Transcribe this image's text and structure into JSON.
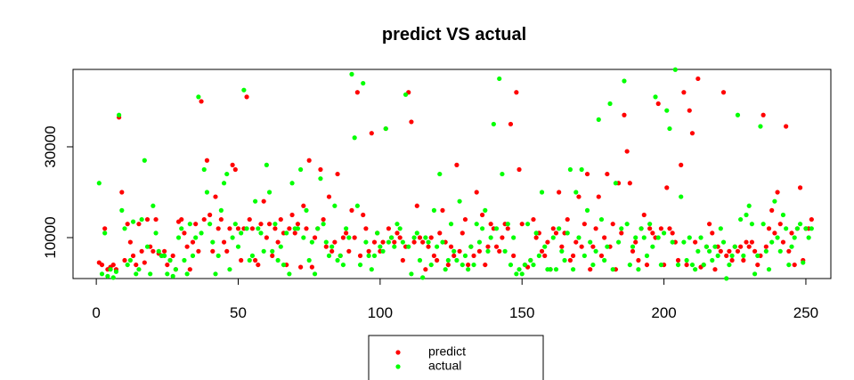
{
  "chart_data": {
    "type": "scatter",
    "title": "predict VS actual",
    "x": [
      1,
      2,
      3,
      4,
      5,
      6,
      7,
      8,
      9,
      10,
      11,
      12,
      13,
      14,
      15,
      16,
      17,
      18,
      19,
      20,
      21,
      22,
      23,
      24,
      25,
      26,
      27,
      28,
      29,
      30,
      31,
      32,
      33,
      34,
      35,
      36,
      37,
      38,
      39,
      40,
      41,
      42,
      43,
      44,
      45,
      46,
      47,
      48,
      49,
      50,
      51,
      52,
      53,
      54,
      55,
      56,
      57,
      58,
      59,
      60,
      61,
      62,
      63,
      64,
      65,
      66,
      67,
      68,
      69,
      70,
      71,
      72,
      73,
      74,
      75,
      76,
      77,
      78,
      79,
      80,
      81,
      82,
      83,
      84,
      85,
      86,
      87,
      88,
      89,
      90,
      91,
      92,
      93,
      94,
      95,
      96,
      97,
      98,
      99,
      100,
      101,
      102,
      103,
      104,
      105,
      106,
      107,
      108,
      109,
      110,
      111,
      112,
      113,
      114,
      115,
      116,
      117,
      118,
      119,
      120,
      121,
      122,
      123,
      124,
      125,
      126,
      127,
      128,
      129,
      130,
      131,
      132,
      133,
      134,
      135,
      136,
      137,
      138,
      139,
      140,
      141,
      142,
      143,
      144,
      145,
      146,
      147,
      148,
      149,
      150,
      151,
      152,
      153,
      154,
      155,
      156,
      157,
      158,
      159,
      160,
      161,
      162,
      163,
      164,
      165,
      166,
      167,
      168,
      169,
      170,
      171,
      172,
      173,
      174,
      175,
      176,
      177,
      178,
      179,
      180,
      181,
      182,
      183,
      184,
      185,
      186,
      187,
      188,
      189,
      190,
      191,
      192,
      193,
      194,
      195,
      196,
      197,
      198,
      199,
      200,
      201,
      202,
      203,
      204,
      205,
      206,
      207,
      208,
      209,
      210,
      211,
      212,
      213,
      214,
      215,
      216,
      217,
      218,
      219,
      220,
      221,
      222,
      223,
      224,
      225,
      226,
      227,
      228,
      229,
      230,
      231,
      232,
      233,
      234,
      235,
      236,
      237,
      238,
      239,
      240,
      241,
      242,
      243,
      244,
      245,
      246,
      247,
      248,
      249,
      250,
      251,
      252
    ],
    "series": [
      {
        "name": "predict",
        "color": "#ff0000",
        "values": [
          4500,
          4000,
          12000,
          3000,
          3500,
          4000,
          3000,
          36500,
          20000,
          5000,
          13000,
          9000,
          6000,
          4000,
          13000,
          7000,
          4500,
          14000,
          8000,
          7000,
          14000,
          6500,
          6000,
          7000,
          4000,
          5000,
          6000,
          3000,
          13500,
          14000,
          11000,
          8000,
          3000,
          9000,
          13000,
          7000,
          40000,
          14000,
          27000,
          15000,
          7000,
          19000,
          12000,
          14000,
          9000,
          7000,
          12000,
          26000,
          25000,
          12000,
          5000,
          12000,
          41000,
          14000,
          12000,
          5000,
          4000,
          13000,
          18000,
          10000,
          13000,
          6000,
          12000,
          9000,
          14000,
          11000,
          4000,
          12000,
          15000,
          11000,
          13000,
          3500,
          17000,
          12000,
          27000,
          3500,
          10000,
          12000,
          25000,
          14000,
          8000,
          19000,
          7000,
          9000,
          24000,
          6000,
          10000,
          11000,
          7000,
          16000,
          10000,
          42000,
          6000,
          15000,
          12000,
          7000,
          33000,
          9000,
          11000,
          7000,
          9000,
          34000,
          12000,
          10000,
          9000,
          11000,
          10000,
          5000,
          8000,
          42000,
          35500,
          9000,
          17000,
          10000,
          9000,
          3000,
          8000,
          10000,
          6000,
          5000,
          11000,
          16000,
          9000,
          4000,
          8000,
          6000,
          26000,
          7000,
          11000,
          14000,
          4000,
          8000,
          6000,
          20000,
          7000,
          15000,
          4000,
          8000,
          13000,
          12000,
          8000,
          7000,
          10000,
          13000,
          12000,
          35000,
          6000,
          42000,
          25000,
          13000,
          4000,
          3500,
          5000,
          14000,
          10000,
          11000,
          7000,
          6000,
          9000,
          3000,
          12000,
          11000,
          20000,
          8000,
          11000,
          14000,
          5000,
          6000,
          9000,
          19000,
          8000,
          13000,
          24000,
          3000,
          8000,
          12000,
          19000,
          6000,
          10000,
          24000,
          8000,
          13000,
          3000,
          22000,
          11000,
          37000,
          29000,
          22000,
          7000,
          9000,
          5000,
          12000,
          15000,
          4000,
          12000,
          11000,
          10000,
          39500,
          12000,
          4000,
          21000,
          12000,
          11000,
          9000,
          5000,
          26000,
          42000,
          4000,
          38000,
          33000,
          9000,
          45000,
          3500,
          4000,
          8000,
          13000,
          11000,
          3000,
          8000,
          7000,
          42000,
          6000,
          7000,
          5000,
          8000,
          7000,
          8000,
          5000,
          9000,
          8000,
          9000,
          7000,
          4000,
          6000,
          37000,
          8000,
          12000,
          16000,
          11000,
          20000,
          13000,
          9000,
          34500,
          7000,
          11000,
          4000,
          12000,
          21000,
          5000,
          12000,
          12000,
          14000
        ]
      },
      {
        "name": "actual",
        "color": "#00ff00",
        "values": [
          22000,
          2000,
          11000,
          1500,
          3000,
          1200,
          2500,
          37000,
          16000,
          12000,
          4000,
          5000,
          13500,
          2000,
          3000,
          14000,
          27000,
          8000,
          2000,
          17000,
          11000,
          7000,
          6000,
          6000,
          2000,
          5000,
          1500,
          3000,
          10000,
          12000,
          5000,
          2000,
          13000,
          6000,
          10000,
          41000,
          11000,
          25000,
          20000,
          13000,
          9000,
          2000,
          6000,
          16000,
          22000,
          24000,
          3000,
          10000,
          13000,
          8000,
          11000,
          42500,
          12000,
          5000,
          6000,
          18000,
          12000,
          11000,
          7000,
          26000,
          20000,
          7000,
          13000,
          5000,
          8000,
          4000,
          11000,
          2000,
          22000,
          12000,
          12000,
          25000,
          10000,
          16000,
          5000,
          9000,
          2000,
          12000,
          23000,
          13000,
          9000,
          6000,
          8000,
          17000,
          5000,
          6000,
          4000,
          12000,
          10000,
          46000,
          32000,
          17000,
          4000,
          44000,
          9000,
          6000,
          3000,
          6000,
          11000,
          8000,
          7000,
          34000,
          9000,
          10000,
          8000,
          13000,
          12000,
          9000,
          41500,
          8000,
          2000,
          10000,
          11000,
          5000,
          1200,
          10000,
          9000,
          4000,
          16000,
          8000,
          24000,
          9000,
          3000,
          5000,
          13000,
          7000,
          5000,
          18000,
          4000,
          6000,
          3000,
          8000,
          4000,
          13000,
          9000,
          12000,
          16000,
          7000,
          10000,
          35000,
          12000,
          45000,
          24000,
          7000,
          13000,
          4000,
          10000,
          2000,
          3000,
          2000,
          4000,
          13000,
          5000,
          4000,
          11000,
          6000,
          20000,
          8000,
          3000,
          3000,
          10000,
          3000,
          12000,
          7000,
          5000,
          11000,
          25000,
          3000,
          20000,
          10000,
          25000,
          6000,
          16000,
          9000,
          4000,
          7000,
          36000,
          14000,
          5000,
          8000,
          39500,
          3000,
          22000,
          9000,
          12000,
          44500,
          13000,
          4000,
          8000,
          10000,
          3000,
          12000,
          10000,
          6000,
          13000,
          8000,
          41000,
          10000,
          4000,
          11000,
          38000,
          34000,
          9000,
          47000,
          4000,
          19000,
          9000,
          5000,
          10000,
          4000,
          3000,
          7000,
          10000,
          4000,
          8000,
          7000,
          5000,
          8000,
          6000,
          12000,
          9000,
          1000,
          4000,
          6000,
          8000,
          37000,
          14000,
          6000,
          15000,
          17000,
          13000,
          2000,
          6000,
          34500,
          13000,
          7000,
          3000,
          9000,
          18000,
          10000,
          7000,
          15000,
          12000,
          4000,
          8000,
          10000,
          12000,
          13000,
          4500,
          12000,
          10000,
          12000
        ]
      }
    ],
    "xlim": [
      -8.2,
      258.8
    ],
    "ylim": [
      980,
      47050
    ],
    "xticks": [
      0,
      50,
      100,
      150,
      200,
      250
    ],
    "yticks": [
      10000,
      30000
    ],
    "legend": "bottom"
  }
}
